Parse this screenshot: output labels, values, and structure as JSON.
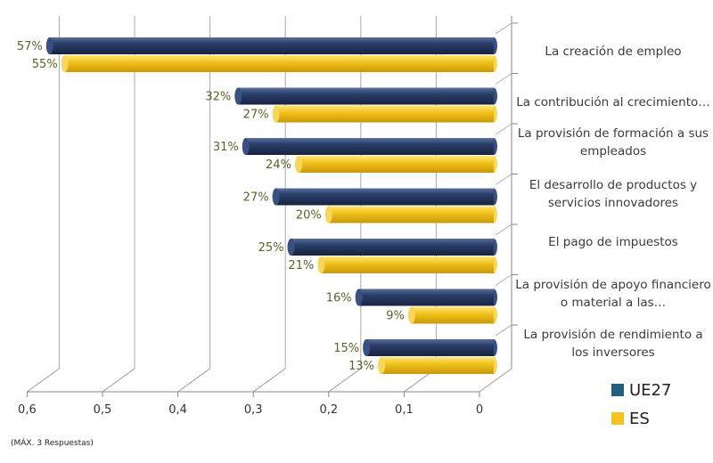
{
  "chart_data": {
    "type": "bar",
    "orientation": "horizontal",
    "categories": [
      "La creación de empleo",
      "La contribución al crecimiento…",
      "La provisión de formación a sus empleados",
      "El desarrollo de productos y servicios innovadores",
      "El pago de impuestos",
      "La provisión de apoyo financiero o material a las…",
      "La provisión de rendimiento a los inversores"
    ],
    "series": [
      {
        "name": "UE27",
        "values": [
          0.57,
          0.32,
          0.31,
          0.27,
          0.25,
          0.16,
          0.15
        ],
        "labels": [
          "57%",
          "32%",
          "31%",
          "27%",
          "25%",
          "16%",
          "15%"
        ],
        "color": "#2b3f6b"
      },
      {
        "name": "ES",
        "values": [
          0.55,
          0.27,
          0.24,
          0.2,
          0.21,
          0.09,
          0.13
        ],
        "labels": [
          "55%",
          "27%",
          "24%",
          "20%",
          "21%",
          "9%",
          "13%"
        ],
        "color": "#f2c31c"
      }
    ],
    "x_ticks": [
      "0,6",
      "0,5",
      "0,4",
      "0,3",
      "0,2",
      "0,1",
      "0"
    ],
    "xlim": [
      0,
      0.6
    ],
    "x_reversed": true,
    "grid": true,
    "legend_position": "bottom-right",
    "data_label_color": "#5f5f2a"
  },
  "footnote": "(MÁX. 3 Respuestas)"
}
